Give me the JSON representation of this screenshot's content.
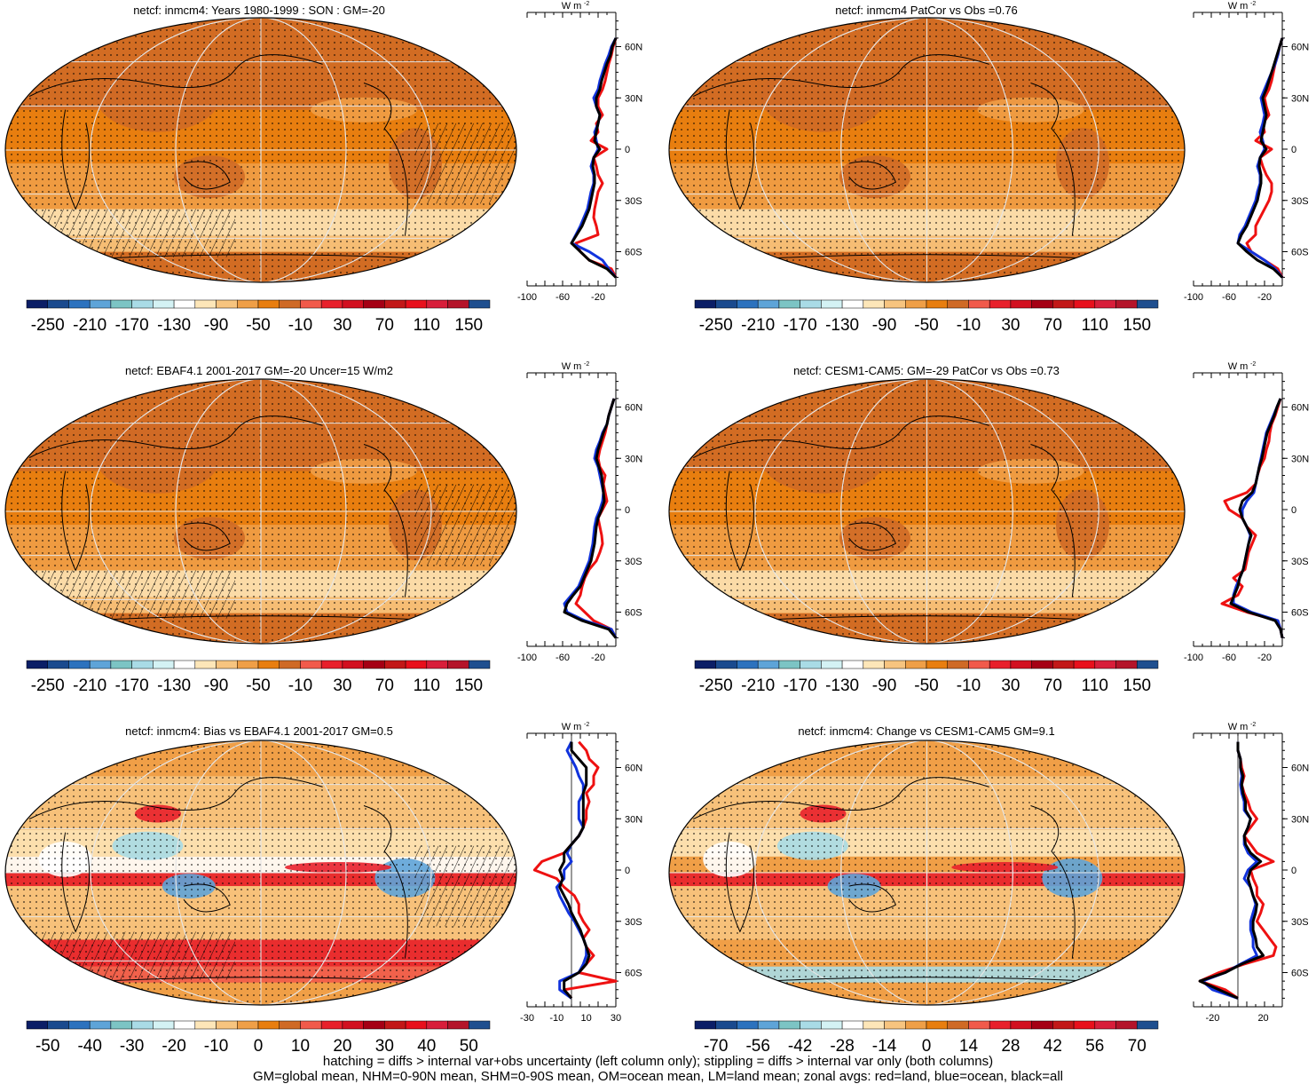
{
  "footer": {
    "line1": "hatching = diffs > internal var+obs uncertainty (left column only); stippling = diffs > internal var only (both columns)",
    "line2": "GM=global mean, NHM=0-90N mean, SHM=0-90S mean, OM=ocean mean, LM=land mean; zonal avgs: red=land, blue=ocean, black=all"
  },
  "profile_units": "W m",
  "profile_units_sup": "-2",
  "lat_labels": [
    "60N",
    "30N",
    "0",
    "30S",
    "60S"
  ],
  "colors": {
    "land": "#ee1111",
    "ocean": "#1133dd",
    "all": "#000000"
  },
  "palette": [
    "#0b1e66",
    "#1a4a8e",
    "#2c72be",
    "#5ea4d8",
    "#7cc4c4",
    "#a9dbe6",
    "#d4f2f4",
    "#ffffff",
    "#fde6b8",
    "#f7c47f",
    "#ef9f47",
    "#e87e0f",
    "#cf6a26",
    "#f15a4b",
    "#e8202b",
    "#d21020",
    "#a50014",
    "#c21818",
    "#e8101c",
    "#d81e3a",
    "#b4142a",
    "#1f4f8f"
  ],
  "chart_data": [
    {
      "type": "heatmap",
      "title": "netcf: inmcm4: Years 1980-1999 : SON : GM=-20",
      "colorbar_labels": [
        "-250",
        "-210",
        "-170",
        "-130",
        "-90",
        "-50",
        "-10",
        "30",
        "70",
        "110",
        "150"
      ],
      "zonal_profile": {
        "x_ticks": [
          "-100",
          "-60",
          "-20"
        ],
        "xlim": [
          -100,
          0
        ],
        "lat": [
          -75,
          -70,
          -65,
          -60,
          -55,
          -50,
          -45,
          -40,
          -35,
          -30,
          -25,
          -20,
          -15,
          -10,
          -5,
          0,
          5,
          10,
          15,
          20,
          25,
          30,
          35,
          40,
          45,
          50,
          55,
          60,
          65
        ],
        "series": [
          {
            "name": "land",
            "values": [
              0,
              -5,
              -30,
              -40,
              -45,
              -20,
              -22,
              -25,
              -24,
              -22,
              -20,
              -15,
              -20,
              -22,
              -25,
              -10,
              -28,
              -20,
              -22,
              -15,
              -20,
              -20,
              -15,
              -12,
              -10,
              -8,
              -5,
              -3,
              0
            ]
          },
          {
            "name": "ocean",
            "values": [
              0,
              -8,
              -15,
              -30,
              -50,
              -45,
              -40,
              -36,
              -32,
              -30,
              -28,
              -25,
              -25,
              -28,
              -25,
              -20,
              -22,
              -24,
              -20,
              -18,
              -22,
              -25,
              -20,
              -18,
              -15,
              -12,
              -8,
              -5,
              0
            ]
          },
          {
            "name": "all",
            "values": [
              0,
              -10,
              -30,
              -40,
              -50,
              -44,
              -38,
              -34,
              -30,
              -28,
              -26,
              -24,
              -24,
              -26,
              -25,
              -18,
              -24,
              -22,
              -20,
              -18,
              -22,
              -22,
              -18,
              -16,
              -13,
              -10,
              -6,
              -4,
              0
            ]
          }
        ]
      }
    },
    {
      "type": "heatmap",
      "title": "netcf: inmcm4 PatCor vs Obs =0.76",
      "colorbar_labels": [
        "-250",
        "-210",
        "-170",
        "-130",
        "-90",
        "-50",
        "-10",
        "30",
        "70",
        "110",
        "150"
      ],
      "zonal_profile": {
        "x_ticks": [
          "-100",
          "-60",
          "-20"
        ],
        "xlim": [
          -100,
          0
        ],
        "lat": [
          -75,
          -70,
          -65,
          -60,
          -55,
          -50,
          -45,
          -40,
          -35,
          -30,
          -25,
          -20,
          -15,
          -10,
          -5,
          0,
          5,
          10,
          15,
          20,
          25,
          30,
          35,
          40,
          45,
          50,
          55,
          60,
          65
        ],
        "series": [
          {
            "name": "land",
            "values": [
              0,
              -5,
              -20,
              -35,
              -40,
              -30,
              -30,
              -25,
              -20,
              -15,
              -12,
              -12,
              -18,
              -22,
              -25,
              -12,
              -30,
              -20,
              -22,
              -15,
              -18,
              -20,
              -15,
              -12,
              -10,
              -8,
              -5,
              -3,
              0
            ]
          },
          {
            "name": "ocean",
            "values": [
              0,
              -8,
              -20,
              -35,
              -50,
              -48,
              -42,
              -38,
              -34,
              -30,
              -28,
              -25,
              -25,
              -28,
              -25,
              -20,
              -22,
              -25,
              -22,
              -20,
              -22,
              -24,
              -20,
              -16,
              -12,
              -8,
              -5,
              -3,
              0
            ]
          },
          {
            "name": "all",
            "values": [
              0,
              -10,
              -28,
              -40,
              -50,
              -46,
              -40,
              -36,
              -32,
              -28,
              -26,
              -24,
              -24,
              -26,
              -25,
              -18,
              -24,
              -22,
              -20,
              -18,
              -20,
              -22,
              -18,
              -15,
              -12,
              -9,
              -6,
              -3,
              0
            ]
          }
        ]
      }
    },
    {
      "type": "heatmap",
      "title": "netcf: EBAF4.1 2001-2017 GM=-20 Uncer=15 W/m2",
      "colorbar_labels": [
        "-250",
        "-210",
        "-170",
        "-130",
        "-90",
        "-50",
        "-10",
        "30",
        "70",
        "110",
        "150"
      ],
      "zonal_profile": {
        "x_ticks": [
          "-100",
          "-60",
          "-20"
        ],
        "xlim": [
          -100,
          0
        ],
        "lat": [
          -75,
          -70,
          -65,
          -60,
          -55,
          -50,
          -45,
          -40,
          -35,
          -30,
          -25,
          -20,
          -15,
          -10,
          -5,
          0,
          5,
          10,
          15,
          20,
          25,
          30,
          35,
          40,
          45,
          50,
          55,
          60,
          65
        ],
        "series": [
          {
            "name": "land",
            "values": [
              0,
              -5,
              -25,
              -35,
              -45,
              -40,
              -38,
              -35,
              -30,
              -22,
              -18,
              -15,
              -16,
              -18,
              -20,
              -15,
              -10,
              -12,
              -14,
              -12,
              -18,
              -20,
              -18,
              -15,
              -12,
              -10,
              -8,
              -5,
              -2
            ]
          },
          {
            "name": "ocean",
            "values": [
              0,
              -5,
              -35,
              -55,
              -58,
              -50,
              -42,
              -38,
              -34,
              -30,
              -28,
              -26,
              -25,
              -24,
              -22,
              -18,
              -15,
              -14,
              -16,
              -18,
              -20,
              -24,
              -22,
              -18,
              -15,
              -10,
              -8,
              -5,
              -2
            ]
          },
          {
            "name": "all",
            "values": [
              0,
              -8,
              -38,
              -58,
              -55,
              -48,
              -40,
              -36,
              -32,
              -28,
              -26,
              -24,
              -23,
              -22,
              -20,
              -16,
              -13,
              -14,
              -15,
              -16,
              -19,
              -22,
              -20,
              -17,
              -14,
              -10,
              -8,
              -5,
              -2
            ]
          }
        ]
      }
    },
    {
      "type": "heatmap",
      "title": "netcf: CESM1-CAM5: GM=-29 PatCor vs Obs =0.73",
      "colorbar_labels": [
        "-250",
        "-210",
        "-170",
        "-130",
        "-90",
        "-50",
        "-10",
        "30",
        "70",
        "110",
        "150"
      ],
      "zonal_profile": {
        "x_ticks": [
          "-100",
          "-60",
          "-20"
        ],
        "xlim": [
          -100,
          0
        ],
        "lat": [
          -75,
          -70,
          -65,
          -60,
          -55,
          -50,
          -45,
          -40,
          -35,
          -30,
          -25,
          -20,
          -15,
          -10,
          -5,
          0,
          5,
          10,
          15,
          20,
          25,
          30,
          35,
          40,
          45,
          50,
          55,
          60,
          65
        ],
        "series": [
          {
            "name": "land",
            "values": [
              0,
              -2,
              -5,
              -40,
              -68,
              -50,
              -45,
              -55,
              -42,
              -40,
              -38,
              -34,
              -30,
              -40,
              -45,
              -60,
              -65,
              -40,
              -30,
              -28,
              -25,
              -20,
              -18,
              -15,
              -14,
              -12,
              -8,
              -5,
              -2
            ]
          },
          {
            "name": "ocean",
            "values": [
              0,
              -2,
              -5,
              -35,
              -55,
              -55,
              -52,
              -48,
              -44,
              -42,
              -40,
              -38,
              -36,
              -40,
              -45,
              -45,
              -40,
              -32,
              -30,
              -28,
              -26,
              -24,
              -22,
              -20,
              -18,
              -14,
              -10,
              -6,
              -2
            ]
          },
          {
            "name": "all",
            "values": [
              0,
              -2,
              -8,
              -38,
              -58,
              -54,
              -50,
              -48,
              -44,
              -42,
              -40,
              -38,
              -35,
              -40,
              -45,
              -48,
              -45,
              -34,
              -30,
              -28,
              -26,
              -23,
              -21,
              -19,
              -17,
              -13,
              -9,
              -6,
              -2
            ]
          }
        ]
      }
    },
    {
      "type": "heatmap",
      "title": "netcf: inmcm4: Bias vs EBAF4.1 2001-2017  GM=0.5",
      "colorbar_labels": [
        "-50",
        "-40",
        "-30",
        "-20",
        "-10",
        "0",
        "10",
        "20",
        "30",
        "40",
        "50"
      ],
      "zonal_profile": {
        "x_ticks": [
          "-30",
          "-10",
          "10",
          "30"
        ],
        "xlim": [
          -30,
          30
        ],
        "lat": [
          -75,
          -70,
          -65,
          -60,
          -55,
          -50,
          -45,
          -40,
          -35,
          -30,
          -25,
          -20,
          -15,
          -10,
          -5,
          0,
          5,
          10,
          15,
          20,
          25,
          30,
          35,
          40,
          45,
          50,
          55,
          60,
          65,
          70,
          75
        ],
        "series": [
          {
            "name": "land",
            "values": [
              0,
              -5,
              30,
              5,
              10,
              15,
              10,
              8,
              12,
              8,
              5,
              5,
              2,
              -5,
              -10,
              -25,
              -20,
              -5,
              0,
              5,
              8,
              10,
              10,
              12,
              10,
              15,
              15,
              18,
              12,
              10,
              5
            ]
          },
          {
            "name": "ocean",
            "values": [
              0,
              -8,
              -8,
              5,
              8,
              10,
              10,
              8,
              5,
              2,
              -2,
              -5,
              -8,
              -10,
              -5,
              -5,
              0,
              -3,
              0,
              5,
              8,
              5,
              5,
              5,
              8,
              8,
              5,
              3,
              0,
              -3,
              0
            ]
          },
          {
            "name": "all",
            "values": [
              0,
              -5,
              -5,
              5,
              10,
              12,
              10,
              8,
              6,
              3,
              0,
              -2,
              -5,
              -8,
              -6,
              -8,
              -5,
              -5,
              0,
              5,
              8,
              8,
              8,
              8,
              8,
              10,
              10,
              10,
              5,
              0,
              0
            ]
          }
        ]
      }
    },
    {
      "type": "heatmap",
      "title": "netcf: inmcm4: Change vs CESM1-CAM5 GM=9.1",
      "colorbar_labels": [
        "-70",
        "-56",
        "-42",
        "-28",
        "-14",
        "0",
        "14",
        "28",
        "42",
        "56",
        "70"
      ],
      "zonal_profile": {
        "x_ticks": [
          "-20",
          "20"
        ],
        "xlim": [
          -35,
          35
        ],
        "lat": [
          -75,
          -70,
          -65,
          -60,
          -55,
          -50,
          -45,
          -40,
          -35,
          -30,
          -25,
          -20,
          -15,
          -10,
          -5,
          0,
          5,
          10,
          15,
          20,
          25,
          30,
          35,
          40,
          45,
          50,
          55,
          60,
          65,
          70,
          75
        ],
        "series": [
          {
            "name": "land",
            "values": [
              0,
              -10,
              -30,
              -15,
              5,
              28,
              30,
              25,
              20,
              15,
              18,
              20,
              15,
              15,
              12,
              10,
              28,
              15,
              10,
              5,
              10,
              15,
              10,
              8,
              5,
              3,
              5,
              3,
              2,
              0,
              0
            ]
          },
          {
            "name": "ocean",
            "values": [
              0,
              -20,
              -28,
              -10,
              2,
              15,
              12,
              12,
              10,
              10,
              12,
              14,
              12,
              10,
              5,
              8,
              15,
              8,
              5,
              5,
              8,
              10,
              5,
              5,
              3,
              2,
              3,
              2,
              2,
              0,
              0
            ]
          },
          {
            "name": "all",
            "values": [
              0,
              -15,
              -30,
              -10,
              3,
              20,
              15,
              14,
              12,
              12,
              14,
              15,
              12,
              10,
              8,
              10,
              18,
              10,
              6,
              5,
              8,
              10,
              6,
              6,
              4,
              3,
              4,
              2,
              2,
              0,
              0
            ]
          }
        ]
      }
    }
  ]
}
